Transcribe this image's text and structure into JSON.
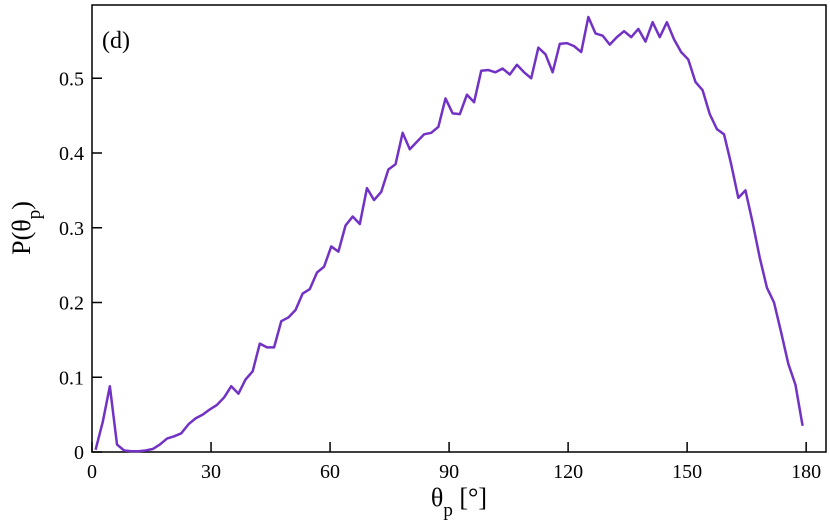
{
  "chart_data": {
    "type": "line",
    "annotation": "(d)",
    "x_label": [
      "θ",
      "p",
      " [°]"
    ],
    "y_label": [
      "P(θ",
      "p",
      ")"
    ],
    "color": "#7232c4",
    "xlim": [
      0,
      185
    ],
    "ylim": [
      0,
      0.598
    ],
    "xticks": [
      0,
      30,
      60,
      90,
      120,
      150,
      180
    ],
    "yticks": [
      0,
      0.1,
      0.2,
      0.3,
      0.4,
      0.5
    ],
    "x": [
      0.9,
      2.7,
      4.5,
      6.3,
      8.1,
      9.9,
      11.7,
      13.5,
      15.3,
      17.1,
      18.9,
      20.7,
      22.5,
      24.3,
      26.1,
      27.9,
      29.7,
      31.5,
      33.3,
      35.1,
      36.9,
      38.7,
      40.5,
      42.3,
      44.1,
      45.9,
      47.7,
      49.5,
      51.3,
      53.1,
      54.9,
      56.7,
      58.5,
      60.3,
      62.1,
      63.9,
      65.7,
      67.5,
      69.3,
      71.1,
      72.9,
      74.7,
      76.5,
      78.3,
      80.1,
      81.9,
      83.7,
      85.5,
      87.3,
      89.1,
      90.9,
      92.7,
      94.5,
      96.3,
      98.1,
      99.9,
      101.7,
      103.5,
      105.3,
      107.1,
      108.9,
      110.7,
      112.5,
      114.3,
      116.1,
      117.9,
      119.7,
      121.5,
      123.3,
      125.1,
      126.9,
      128.7,
      130.5,
      132.3,
      134.1,
      135.9,
      137.7,
      139.5,
      141.3,
      143.1,
      144.9,
      146.7,
      148.5,
      150.3,
      152.1,
      153.9,
      155.7,
      157.5,
      159.3,
      161.1,
      162.9,
      164.7,
      166.5,
      168.3,
      170.1,
      171.9,
      173.7,
      175.5,
      177.3,
      179.1
    ],
    "values": [
      0.003,
      0.04,
      0.088,
      0.01,
      0.002,
      0.001,
      0.001,
      0.002,
      0.004,
      0.01,
      0.018,
      0.021,
      0.025,
      0.037,
      0.045,
      0.05,
      0.057,
      0.063,
      0.073,
      0.088,
      0.078,
      0.097,
      0.108,
      0.145,
      0.14,
      0.14,
      0.175,
      0.18,
      0.19,
      0.212,
      0.218,
      0.24,
      0.248,
      0.275,
      0.268,
      0.303,
      0.315,
      0.305,
      0.353,
      0.337,
      0.348,
      0.378,
      0.385,
      0.427,
      0.405,
      0.415,
      0.425,
      0.427,
      0.435,
      0.473,
      0.453,
      0.452,
      0.478,
      0.468,
      0.51,
      0.511,
      0.508,
      0.513,
      0.505,
      0.518,
      0.508,
      0.5,
      0.541,
      0.532,
      0.508,
      0.546,
      0.547,
      0.543,
      0.535,
      0.582,
      0.56,
      0.557,
      0.545,
      0.555,
      0.563,
      0.555,
      0.566,
      0.549,
      0.575,
      0.555,
      0.575,
      0.552,
      0.535,
      0.525,
      0.495,
      0.484,
      0.452,
      0.432,
      0.425,
      0.385,
      0.34,
      0.35,
      0.307,
      0.26,
      0.22,
      0.2,
      0.16,
      0.118,
      0.09,
      0.035
    ]
  }
}
